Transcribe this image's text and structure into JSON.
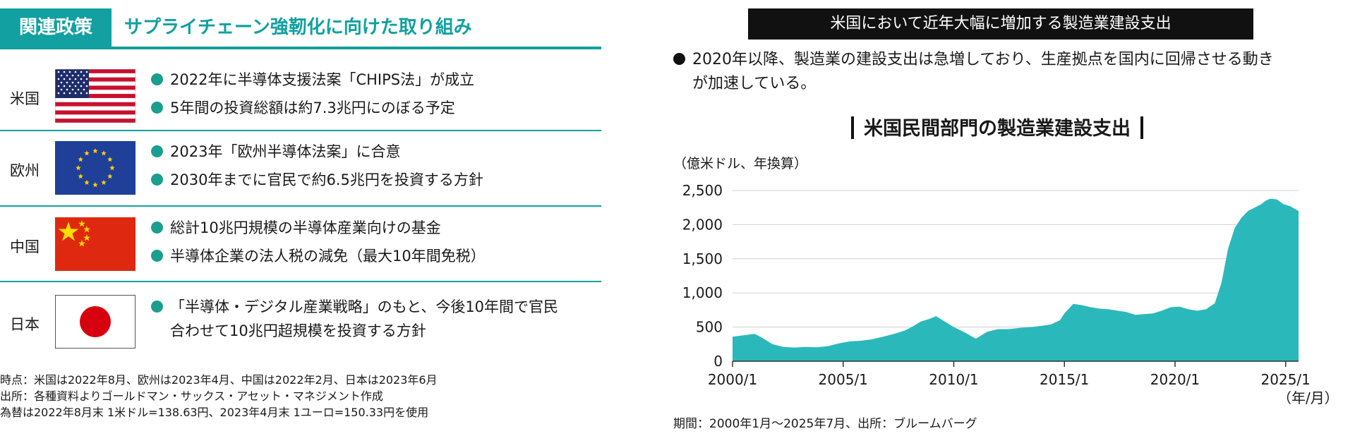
{
  "left": {
    "header_box": "関連政策",
    "header_title": "サプライチェーン強靭化に向けた取り組み",
    "rows": [
      {
        "country": "米国",
        "flag_icon": "us-flag",
        "bullets": [
          "2022年に半導体支援法案「CHIPS法」が成立",
          "5年間の投資総額は約7.3兆円にのぼる予定"
        ]
      },
      {
        "country": "欧州",
        "flag_icon": "eu-flag",
        "bullets": [
          "2023年「欧州半導体法案」に合意",
          "2030年までに官民で約6.5兆円を投資する方針"
        ]
      },
      {
        "country": "中国",
        "flag_icon": "china-flag",
        "bullets": [
          "総計10兆円規模の半導体産業向けの基金",
          "半導体企業の法人税の減免（最大10年間免税）"
        ]
      },
      {
        "country": "日本",
        "flag_icon": "japan-flag",
        "bullets": [
          "「半導体・デジタル産業戦略」のもと、今後10年間で官民",
          "合わせて10兆円超規模を投資する方針"
        ]
      }
    ],
    "footnotes": [
      "時点：米国は2022年8月、欧州は2023年4月、中国は2022年2月、日本は2023年6月",
      "出所：各種資料よりゴールドマン・サックス・アセット・マネジメント作成",
      "為替は2022年8月末 1米ドル=138.63円、2023年4月末 1ユーロ=150.33円を使用"
    ],
    "colors": {
      "accent": "#12a0a0",
      "bullet": "#1a9e8f"
    }
  },
  "right": {
    "header_bar": "米国において近年大幅に増加する製造業建設支出",
    "description_line1": "2020年以降、製造業の建設支出は急増しており、生産拠点を国内に回帰させる動き",
    "description_line2": "が加速している。",
    "chart_title": "米国民間部門の製造業建設支出",
    "unit_label": "（億米ドル、年換算）",
    "x_unit_label": "（年/月）",
    "footnote": "期間：2000年1月～2025年7月、出所：ブルームバーグ"
  },
  "chart_data": {
    "type": "area",
    "title": "米国民間部門の製造業建設支出",
    "ylabel": "（億米ドル、年換算）",
    "xlabel": "（年/月）",
    "ylim": [
      0,
      2500
    ],
    "xlim": [
      2000.0,
      2025.583
    ],
    "y_ticks": [
      0,
      500,
      1000,
      1500,
      2000,
      2500
    ],
    "y_tick_labels": [
      "0",
      "500",
      "1,000",
      "1,500",
      "2,000",
      "2,500"
    ],
    "x_ticks": [
      2000.0,
      2005.0,
      2010.0,
      2015.0,
      2020.0,
      2025.0
    ],
    "x_tick_labels": [
      "2000/1",
      "2005/1",
      "2010/1",
      "2015/1",
      "2020/1",
      "2025/1"
    ],
    "grid": true,
    "color": "#2bb8bb",
    "series": [
      {
        "x": [
          2000.0,
          2000.5,
          2001.0,
          2001.3,
          2001.8,
          2002.3,
          2002.8,
          2003.3,
          2003.8,
          2004.3,
          2004.8,
          2005.3,
          2005.8,
          2006.3,
          2006.8,
          2007.3,
          2007.8,
          2008.2,
          2008.5,
          2008.9,
          2009.2,
          2009.6,
          2010.0,
          2010.5,
          2011.0,
          2011.5,
          2012.0,
          2012.5,
          2013.0,
          2013.5,
          2014.0,
          2014.4,
          2014.8,
          2015.0,
          2015.4,
          2015.8,
          2016.2,
          2016.6,
          2017.0,
          2017.4,
          2017.8,
          2018.2,
          2018.6,
          2019.0,
          2019.4,
          2019.8,
          2020.2,
          2020.6,
          2021.0,
          2021.4,
          2021.8,
          2022.1,
          2022.4,
          2022.7,
          2023.0,
          2023.3,
          2023.6,
          2023.9,
          2024.1,
          2024.3,
          2024.6,
          2024.9,
          2025.2,
          2025.583
        ],
        "y": [
          360,
          380,
          400,
          350,
          250,
          210,
          200,
          210,
          205,
          220,
          260,
          290,
          300,
          320,
          360,
          400,
          450,
          520,
          580,
          620,
          660,
          580,
          500,
          420,
          330,
          430,
          470,
          470,
          490,
          500,
          520,
          540,
          600,
          700,
          840,
          820,
          790,
          770,
          760,
          740,
          720,
          680,
          690,
          700,
          740,
          790,
          800,
          760,
          740,
          760,
          850,
          1150,
          1650,
          1950,
          2100,
          2200,
          2250,
          2300,
          2350,
          2380,
          2370,
          2300,
          2270,
          2200
        ]
      }
    ]
  }
}
